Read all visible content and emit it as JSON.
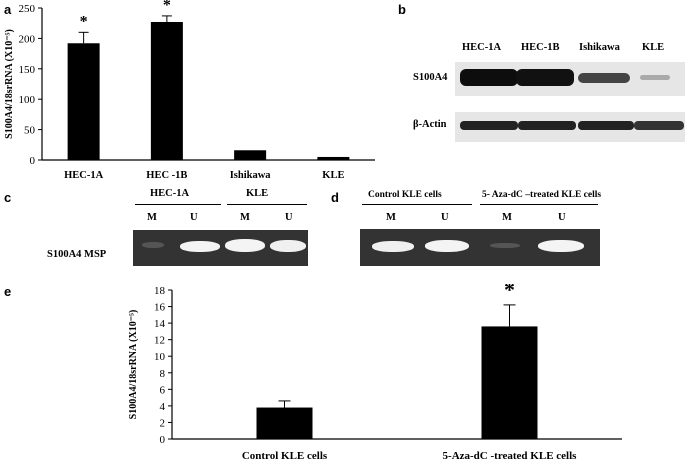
{
  "panels": {
    "a": "a",
    "b": "b",
    "c": "c",
    "d": "d",
    "e": "e"
  },
  "chart_data": [
    {
      "panel": "a",
      "type": "bar",
      "categories": [
        "HEC-1A",
        "HEC -1B",
        "Ishikawa",
        "KLE"
      ],
      "values": [
        192,
        227,
        16,
        5
      ],
      "errors": [
        18,
        10,
        0,
        0
      ],
      "significance": [
        "*",
        "*",
        "",
        ""
      ],
      "ylabel": "S100A4/18srRNA (X10⁻⁵)",
      "ylim": [
        0,
        250
      ],
      "yticks": [
        0,
        50,
        100,
        150,
        200,
        250
      ],
      "grid": false
    },
    {
      "panel": "e",
      "type": "bar",
      "categories": [
        "Control KLE cells",
        "5-Aza-dC -treated KLE cells"
      ],
      "values": [
        3.8,
        13.6
      ],
      "errors": [
        0.8,
        2.6
      ],
      "significance": [
        "",
        "*"
      ],
      "ylabel": "S100A4/18srRNA (X10⁻⁵)",
      "ylim": [
        0,
        18
      ],
      "yticks": [
        0,
        2,
        4,
        6,
        8,
        10,
        12,
        14,
        16,
        18
      ],
      "grid": false
    }
  ],
  "panel_b": {
    "lanes": [
      "HEC-1A",
      "HEC-1B",
      "Ishikawa",
      "KLE"
    ],
    "rows": [
      "S100A4",
      "β-Actin"
    ]
  },
  "panel_c": {
    "groups": [
      "HEC-1A",
      "KLE"
    ],
    "lanes": [
      "M",
      "U",
      "M",
      "U"
    ],
    "row_label": "S100A4 MSP"
  },
  "panel_d": {
    "groups": [
      "Control KLE cells",
      "5- Aza-dC –treated KLE cells"
    ],
    "lanes": [
      "M",
      "U",
      "M",
      "U"
    ]
  },
  "colors": {
    "bar": "#000000",
    "gel": "#333333",
    "band_light": "#f4f4f4",
    "blot_band": "#111111"
  }
}
